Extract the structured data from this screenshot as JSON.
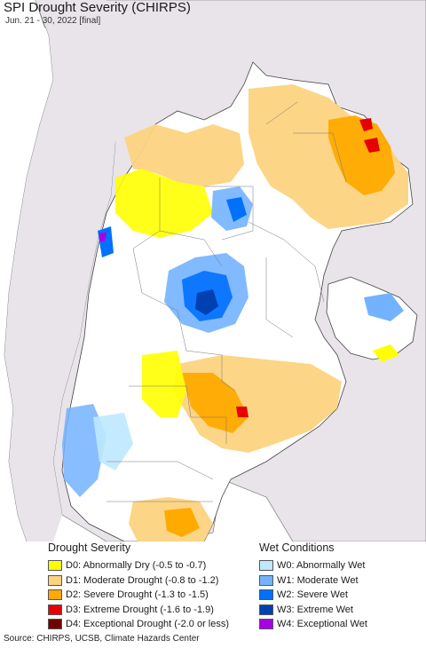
{
  "title": "SPI Drought Severity (CHIRPS)",
  "subtitle": "Jun. 21 - 30, 2022 [final]",
  "legend": {
    "drought": {
      "heading": "Drought Severity",
      "items": [
        {
          "label": "D0: Abnormally Dry (-0.5 to -0.7)",
          "color": "#ffff00"
        },
        {
          "label": "D1: Moderate Drought (-0.8 to -1.2)",
          "color": "#fcd37f"
        },
        {
          "label": "D2: Severe Drought (-1.3 to -1.5)",
          "color": "#ffaa00"
        },
        {
          "label": "D3: Extreme Drought (-1.6 to -1.9)",
          "color": "#e60000"
        },
        {
          "label": "D4: Exceptional Drought (-2.0 or less)",
          "color": "#730000"
        }
      ]
    },
    "wet": {
      "heading": "Wet Conditions",
      "items": [
        {
          "label": "W0: Abnormally Wet",
          "color": "#bee8ff"
        },
        {
          "label": "W1: Moderate Wet",
          "color": "#73b2ff"
        },
        {
          "label": "W2: Severe Wet",
          "color": "#0070ff"
        },
        {
          "label": "W3: Extreme Wet",
          "color": "#0040b0"
        },
        {
          "label": "W4: Exceptional Wet",
          "color": "#a800e6"
        }
      ]
    }
  },
  "source": "Source: CHIRPS, UCSB, Climate Hazards Center",
  "colors": {
    "land_outside": "#e8e4ea",
    "ocean": "#ffffff",
    "land_in": "#ffffff",
    "border": "#555555"
  }
}
